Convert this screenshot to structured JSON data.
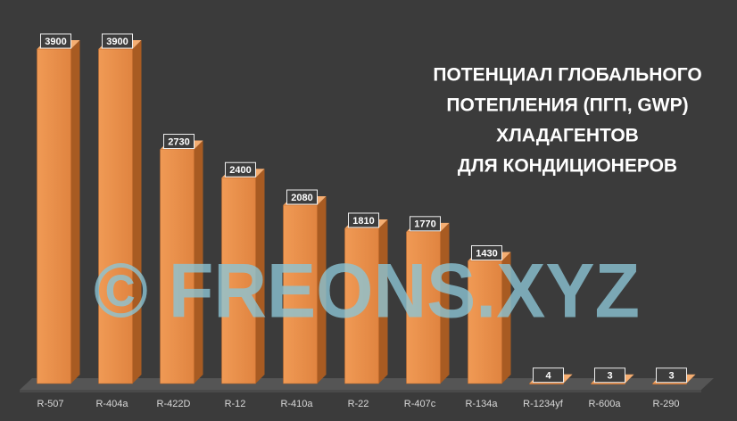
{
  "chart_data": {
    "type": "bar3d",
    "title": [
      "ПОТЕНЦИАЛ ГЛОБАЛЬНОГО",
      "ПОТЕПЛЕНИЯ (ПГП, GWP)",
      "ХЛАДАГЕНТОВ",
      "ДЛЯ КОНДИЦИОНЕРОВ"
    ],
    "watermark": "© FREONS.XYZ",
    "categories": [
      "R-507",
      "R-404a",
      "R-422D",
      "R-12",
      "R-410a",
      "R-22",
      "R-407c",
      "R-134a",
      "R-1234yf",
      "R-600a",
      "R-290"
    ],
    "values": [
      3900,
      3900,
      2730,
      2400,
      2080,
      1810,
      1770,
      1430,
      4,
      3,
      3
    ],
    "color": "#e8904a",
    "ylim": [
      0,
      4000
    ]
  }
}
